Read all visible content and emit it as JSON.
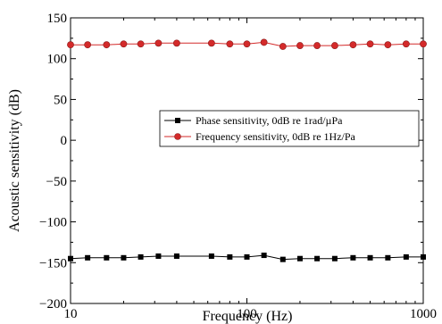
{
  "chart_data": {
    "type": "line",
    "xlabel": "Frequency (Hz)",
    "ylabel": "Acoustic sensitivity (dB)",
    "xscale": "log",
    "xlim": [
      10,
      1000
    ],
    "ylim": [
      -200,
      150
    ],
    "xticks": [
      10,
      100,
      1000
    ],
    "xtick_labels": [
      "10",
      "100",
      "1000"
    ],
    "yticks": [
      150,
      100,
      50,
      0,
      -50,
      -100,
      -150,
      -200
    ],
    "ytick_labels": [
      "150",
      "100",
      "50",
      "0",
      "−50",
      "−100",
      "−150",
      "−200"
    ],
    "grid": false,
    "legend_position": "center-right",
    "series": [
      {
        "name": "Phase sensitivity, 0dB re 1rad/µPa",
        "marker": "square",
        "color": "#000000",
        "x": [
          10,
          12.5,
          16,
          20,
          25,
          31.5,
          40,
          63,
          80,
          100,
          125,
          160,
          200,
          250,
          315,
          400,
          500,
          630,
          800,
          1000
        ],
        "y": [
          -145,
          -144,
          -144,
          -144,
          -143,
          -142,
          -142,
          -142,
          -143,
          -143,
          -141,
          -146,
          -145,
          -145,
          -145,
          -144,
          -144,
          -144,
          -143,
          -143
        ]
      },
      {
        "name": "Frequency sensitivity, 0dB re 1Hz/Pa",
        "marker": "circle",
        "color": "#d42a2a",
        "x": [
          10,
          12.5,
          16,
          20,
          25,
          31.5,
          40,
          63,
          80,
          100,
          125,
          160,
          200,
          250,
          315,
          400,
          500,
          630,
          800,
          1000
        ],
        "y": [
          117,
          117,
          117,
          118,
          118,
          119,
          119,
          119,
          118,
          118,
          120,
          115,
          116,
          116,
          116,
          117,
          118,
          117,
          118,
          118
        ]
      }
    ]
  }
}
